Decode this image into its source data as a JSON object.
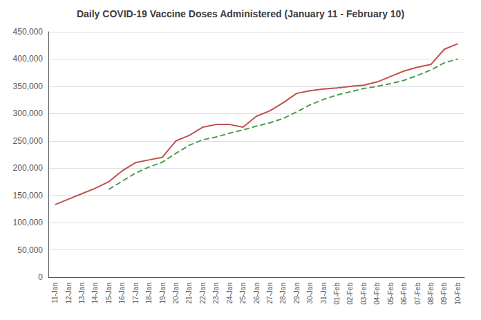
{
  "chart_data": {
    "type": "line",
    "title": "Daily COVID-19 Vaccine Doses Administered (January 11 - February 10)",
    "categories": [
      "11-Jan",
      "12-Jan",
      "13-Jan",
      "14-Jan",
      "15-Jan",
      "16-Jan",
      "17-Jan",
      "18-Jan",
      "19-Jan",
      "20-Jan",
      "21-Jan",
      "22-Jan",
      "23-Jan",
      "24-Jan",
      "25-Jan",
      "26-Jan",
      "27-Jan",
      "28-Jan",
      "29-Jan",
      "30-Jan",
      "31-Jan",
      "01-Feb",
      "02-Feb",
      "03-Feb",
      "04-Feb",
      "05-Feb",
      "06-Feb",
      "07-Feb",
      "08-Feb",
      "09-Feb",
      "10-Feb"
    ],
    "series": [
      {
        "color": "#c0504d",
        "line_style": "solid",
        "values": [
          133000,
          143000,
          153000,
          163000,
          175000,
          195000,
          210000,
          215000,
          220000,
          250000,
          260000,
          275000,
          280000,
          280000,
          275000,
          295000,
          305000,
          320000,
          337000,
          342000,
          345000,
          347000,
          350000,
          352000,
          358000,
          368000,
          378000,
          385000,
          390000,
          418000,
          428000
        ]
      },
      {
        "color": "#4e9a4e",
        "line_style": "dashed",
        "values": [
          null,
          null,
          null,
          null,
          161000,
          176000,
          191000,
          202000,
          211000,
          227000,
          242000,
          252000,
          257000,
          264000,
          270000,
          277000,
          283000,
          291000,
          303000,
          316000,
          326000,
          334000,
          340000,
          346000,
          350000,
          355000,
          361000,
          370000,
          380000,
          393000,
          400000
        ]
      }
    ],
    "ylim": [
      0,
      450000
    ],
    "yticks": [
      0,
      {
        "value": 50000,
        "label": "50,000"
      },
      {
        "value": 100000,
        "label": "100,000"
      },
      {
        "value": 150000,
        "label": "150,000"
      },
      {
        "value": 200000,
        "label": "200,000"
      },
      {
        "value": 250000,
        "label": "250,000"
      },
      {
        "value": 300000,
        "label": "300,000"
      },
      {
        "value": 350000,
        "label": "350,000"
      },
      {
        "value": 400000,
        "label": "400,000"
      },
      {
        "value": 450000,
        "label": "450,000"
      }
    ],
    "grid": true
  }
}
